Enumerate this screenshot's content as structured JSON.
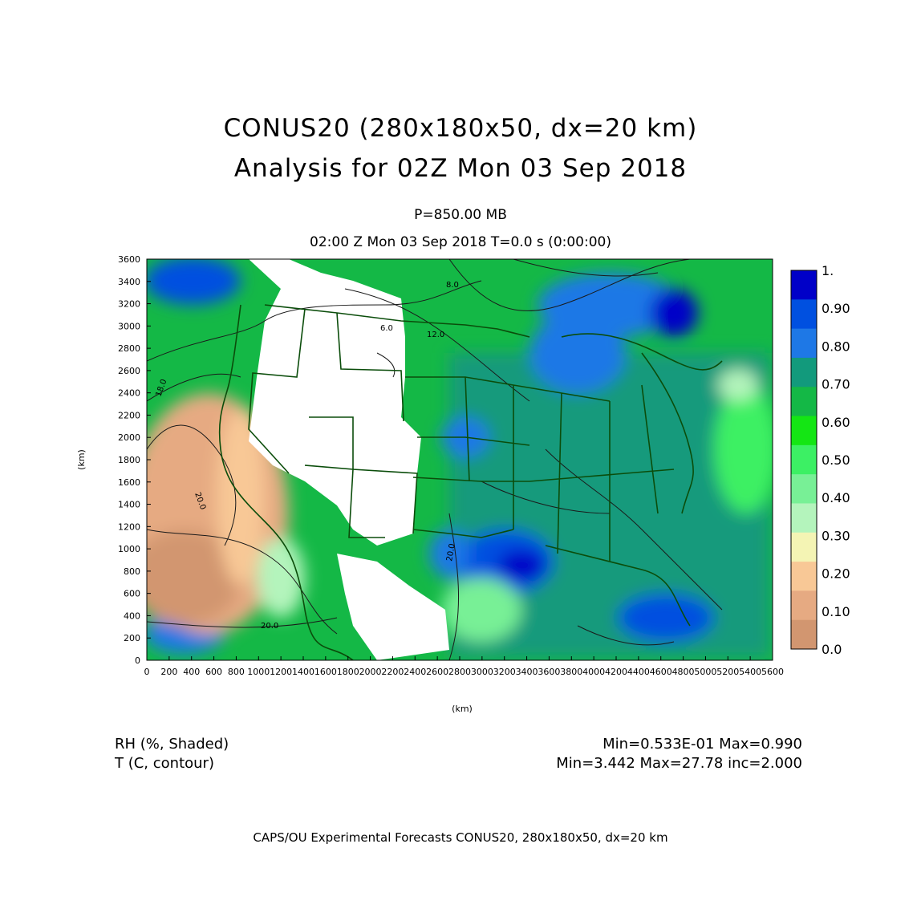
{
  "title": {
    "line1": "CONUS20 (280x180x50, dx=20 km)",
    "line2": "Analysis for 02Z Mon 03 Sep 2018"
  },
  "subtitle": {
    "level": "P=850.00 MB",
    "time": "02:00 Z Mon 03 Sep 2018    T=0.0 s (0:00:00)"
  },
  "axes": {
    "xlabel": "(km)",
    "ylabel": "(km)",
    "x_ticks": [
      "0",
      "200",
      "400",
      "600",
      "800",
      "1000",
      "1200",
      "1400",
      "1600",
      "1800",
      "2000",
      "2200",
      "2400",
      "2600",
      "2800",
      "3000",
      "3200",
      "3400",
      "3600",
      "3800",
      "4000",
      "4200",
      "4400",
      "4600",
      "4800",
      "5000",
      "5200",
      "5400",
      "5600"
    ],
    "y_ticks": [
      "0",
      "200",
      "400",
      "600",
      "800",
      "1000",
      "1200",
      "1400",
      "1600",
      "1800",
      "2000",
      "2200",
      "2400",
      "2600",
      "2800",
      "3000",
      "3200",
      "3400",
      "3600"
    ],
    "x_range": [
      0,
      5600
    ],
    "y_range": [
      0,
      3600
    ]
  },
  "colorbar": {
    "labels": [
      "1.",
      "0.90",
      "0.80",
      "0.70",
      "0.60",
      "0.50",
      "0.40",
      "0.30",
      "0.20",
      "0.10",
      "0.0"
    ],
    "colors": [
      "#0000c8",
      "#0050e0",
      "#1e78e6",
      "#129a7c",
      "#14b846",
      "#14e614",
      "#3cf064",
      "#78f096",
      "#b4f4bc",
      "#f4f4b4",
      "#f8c896",
      "#e6aa82",
      "#d29670"
    ]
  },
  "contour_labels": [
    "18.0",
    "20.0",
    "20.0",
    "6.0",
    "12.0",
    "8.0",
    "20.0"
  ],
  "fields": {
    "shaded_name": "RH (%, Shaded)",
    "contour_name": "T (C, contour)",
    "shaded_stats": "Min=0.533E-01 Max=0.990",
    "contour_stats": "Min=3.442 Max=27.78 inc=2.000"
  },
  "footer": "CAPS/OU Experimental Forecasts  CONUS20, 280x180x50, dx=20 km"
}
